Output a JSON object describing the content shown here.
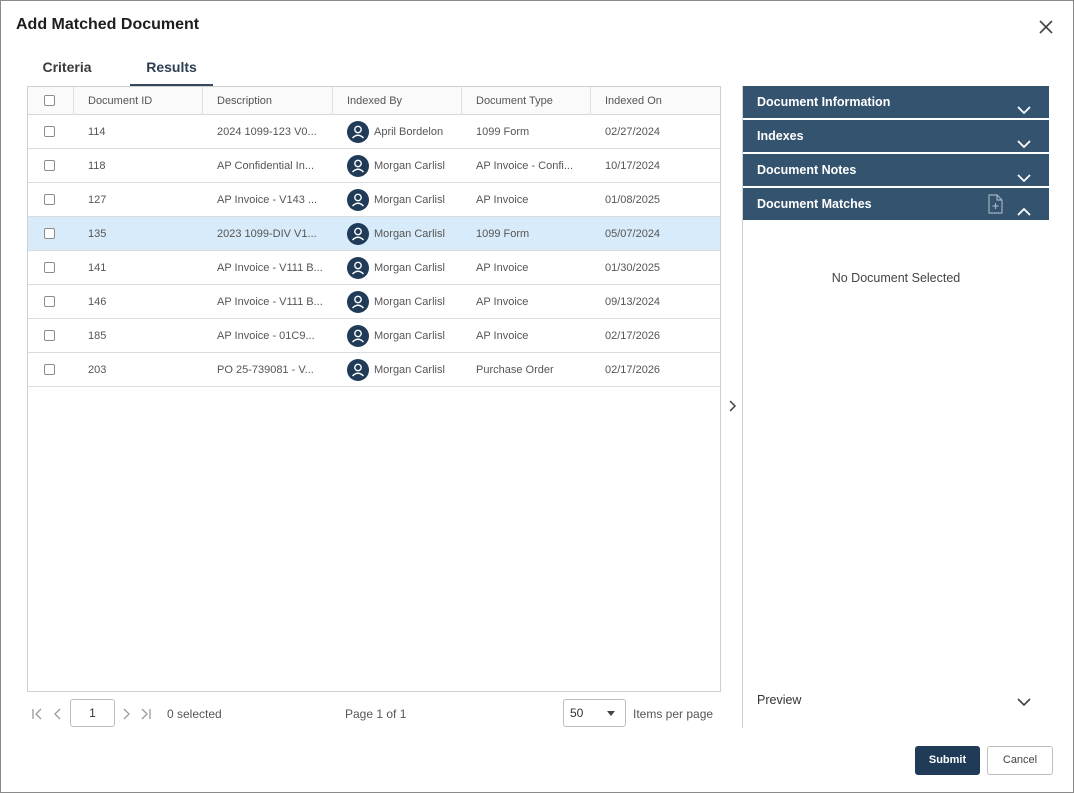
{
  "dialog": {
    "title": "Add Matched Document"
  },
  "tabs": [
    {
      "label": "Criteria"
    },
    {
      "label": "Results"
    }
  ],
  "grid": {
    "columns": [
      "Document ID",
      "Description",
      "Indexed By",
      "Document Type",
      "Indexed On"
    ],
    "rows": [
      {
        "id": "114",
        "description": "2024 1099-123 V0...",
        "indexed_by": "April Bordelon",
        "type": "1099 Form",
        "indexed_on": "02/27/2024"
      },
      {
        "id": "118",
        "description": "AP Confidential In...",
        "indexed_by": "Morgan Carlisl",
        "type": "AP Invoice - Confi...",
        "indexed_on": "10/17/2024"
      },
      {
        "id": "127",
        "description": "AP Invoice - V143 ...",
        "indexed_by": "Morgan Carlisl",
        "type": "AP Invoice",
        "indexed_on": "01/08/2025"
      },
      {
        "id": "135",
        "description": "2023 1099-DIV V1...",
        "indexed_by": "Morgan Carlisl",
        "type": "1099 Form",
        "indexed_on": "05/07/2024"
      },
      {
        "id": "141",
        "description": "AP Invoice - V111 B...",
        "indexed_by": "Morgan Carlisl",
        "type": "AP Invoice",
        "indexed_on": "01/30/2025"
      },
      {
        "id": "146",
        "description": "AP Invoice - V111 B...",
        "indexed_by": "Morgan Carlisl",
        "type": "AP Invoice",
        "indexed_on": "09/13/2024"
      },
      {
        "id": "185",
        "description": "AP Invoice - 01C9...",
        "indexed_by": "Morgan Carlisl",
        "type": "AP Invoice",
        "indexed_on": "02/17/2026"
      },
      {
        "id": "203",
        "description": "PO 25-739081 - V...",
        "indexed_by": "Morgan Carlisl",
        "type": "Purchase Order",
        "indexed_on": "02/17/2026"
      }
    ],
    "selected_row_index": 3
  },
  "pager": {
    "page_input": "1",
    "selected_count": "0 selected",
    "page_info": "Page 1 of 1",
    "page_size": "50",
    "items_per_page_label": "Items per page"
  },
  "panel": {
    "sections": [
      {
        "label": "Document Information",
        "expanded": false
      },
      {
        "label": "Indexes",
        "expanded": false
      },
      {
        "label": "Document Notes",
        "expanded": false
      },
      {
        "label": "Document Matches",
        "expanded": true
      }
    ],
    "empty_message": "No Document Selected",
    "preview_label": "Preview"
  },
  "buttons": {
    "submit": "Submit",
    "cancel": "Cancel"
  },
  "colors": {
    "header_bg": "#34536f",
    "primary": "#1f3b57",
    "selected_row": "#d7ebfa"
  }
}
